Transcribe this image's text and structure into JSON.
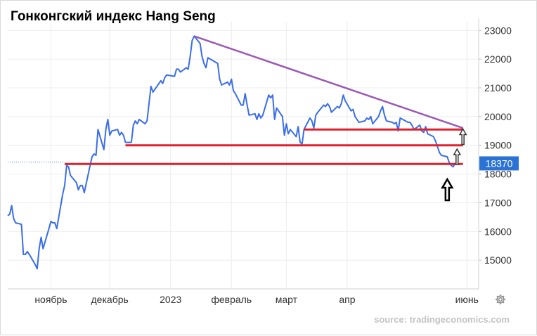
{
  "chart_data": {
    "type": "line",
    "title": "Гонконгский индекс Hang Seng",
    "xlabel": "",
    "ylabel": "",
    "x_tick_labels": [
      "ноябрь",
      "декабрь",
      "2023",
      "февраль",
      "март",
      "апр",
      "июнь"
    ],
    "x_tick_dates": [
      "2022-11-01",
      "2022-12-01",
      "2023-01-01",
      "2023-02-01",
      "2023-03-01",
      "2023-04-01",
      "2023-06-01"
    ],
    "y_ticks": [
      15000,
      16000,
      17000,
      18000,
      19000,
      20000,
      21000,
      22000,
      23000
    ],
    "ylim": [
      14000,
      23300
    ],
    "xlim": [
      "2022-10-10",
      "2023-06-07"
    ],
    "grid": true,
    "legend": "none",
    "current_value_label": "18370",
    "series": [
      {
        "color": "#3a6ee8",
        "points": [
          [
            "2022-10-10",
            16550
          ],
          [
            "2022-10-11",
            16600
          ],
          [
            "2022-10-12",
            16900
          ],
          [
            "2022-10-13",
            16450
          ],
          [
            "2022-10-14",
            16300
          ],
          [
            "2022-10-17",
            16250
          ],
          [
            "2022-10-18",
            15200
          ],
          [
            "2022-10-19",
            15200
          ],
          [
            "2022-10-20",
            15300
          ],
          [
            "2022-10-21",
            15200
          ],
          [
            "2022-10-24",
            14850
          ],
          [
            "2022-10-25",
            14700
          ],
          [
            "2022-10-26",
            15400
          ],
          [
            "2022-10-27",
            15800
          ],
          [
            "2022-10-28",
            15400
          ],
          [
            "2022-10-31",
            16100
          ],
          [
            "2022-11-01",
            16350
          ],
          [
            "2022-11-02",
            16300
          ],
          [
            "2022-11-03",
            16300
          ],
          [
            "2022-11-04",
            16100
          ],
          [
            "2022-11-07",
            17300
          ],
          [
            "2022-11-08",
            17600
          ],
          [
            "2022-11-09",
            18300
          ],
          [
            "2022-11-10",
            18250
          ],
          [
            "2022-11-11",
            17950
          ],
          [
            "2022-11-14",
            17700
          ],
          [
            "2022-11-15",
            17450
          ],
          [
            "2022-11-16",
            17600
          ],
          [
            "2022-11-17",
            17600
          ],
          [
            "2022-11-18",
            17350
          ],
          [
            "2022-11-21",
            18300
          ],
          [
            "2022-11-22",
            18600
          ],
          [
            "2022-11-23",
            18700
          ],
          [
            "2022-11-24",
            18650
          ],
          [
            "2022-11-25",
            19550
          ],
          [
            "2022-11-28",
            18850
          ],
          [
            "2022-11-29",
            19550
          ],
          [
            "2022-11-30",
            19900
          ],
          [
            "2022-12-01",
            19350
          ],
          [
            "2022-12-02",
            19500
          ],
          [
            "2022-12-05",
            19550
          ],
          [
            "2022-12-06",
            19350
          ],
          [
            "2022-12-07",
            19450
          ],
          [
            "2022-12-08",
            19350
          ],
          [
            "2022-12-09",
            19100
          ],
          [
            "2022-12-12",
            19100
          ],
          [
            "2022-12-13",
            19700
          ],
          [
            "2022-12-14",
            19850
          ],
          [
            "2022-12-15",
            19750
          ],
          [
            "2022-12-16",
            19900
          ],
          [
            "2022-12-19",
            19750
          ],
          [
            "2022-12-20",
            19850
          ],
          [
            "2022-12-21",
            20450
          ],
          [
            "2022-12-22",
            21050
          ],
          [
            "2022-12-23",
            20850
          ],
          [
            "2022-12-27",
            21250
          ],
          [
            "2022-12-28",
            21150
          ],
          [
            "2022-12-29",
            21350
          ],
          [
            "2022-12-30",
            21450
          ],
          [
            "2023-01-03",
            21400
          ],
          [
            "2023-01-04",
            21650
          ],
          [
            "2023-01-05",
            21650
          ],
          [
            "2023-01-06",
            21550
          ],
          [
            "2023-01-09",
            21700
          ],
          [
            "2023-01-10",
            21650
          ],
          [
            "2023-01-11",
            22100
          ],
          [
            "2023-01-12",
            22650
          ],
          [
            "2023-01-13",
            22800
          ],
          [
            "2023-01-16",
            22550
          ],
          [
            "2023-01-17",
            22100
          ],
          [
            "2023-01-18",
            21850
          ],
          [
            "2023-01-19",
            21700
          ],
          [
            "2023-01-20",
            22050
          ],
          [
            "2023-01-25",
            21850
          ],
          [
            "2023-01-26",
            21300
          ],
          [
            "2023-01-27",
            21100
          ],
          [
            "2023-01-30",
            21200
          ],
          [
            "2023-01-31",
            21100
          ],
          [
            "2023-02-01",
            21300
          ],
          [
            "2023-02-02",
            20900
          ],
          [
            "2023-02-03",
            20800
          ],
          [
            "2023-02-06",
            20400
          ],
          [
            "2023-02-07",
            20400
          ],
          [
            "2023-02-08",
            20800
          ],
          [
            "2023-02-09",
            20400
          ],
          [
            "2023-02-10",
            20050
          ],
          [
            "2023-02-13",
            20100
          ],
          [
            "2023-02-14",
            19900
          ],
          [
            "2023-02-15",
            20100
          ],
          [
            "2023-02-16",
            19950
          ],
          [
            "2023-02-17",
            20050
          ],
          [
            "2023-02-20",
            20750
          ],
          [
            "2023-02-21",
            20650
          ],
          [
            "2023-02-22",
            20750
          ],
          [
            "2023-02-23",
            19900
          ],
          [
            "2023-02-24",
            20300
          ],
          [
            "2023-02-27",
            20000
          ],
          [
            "2023-02-28",
            19350
          ],
          [
            "2023-03-01",
            19750
          ],
          [
            "2023-03-02",
            19400
          ],
          [
            "2023-03-03",
            19550
          ],
          [
            "2023-03-06",
            19300
          ],
          [
            "2023-03-07",
            19650
          ],
          [
            "2023-03-08",
            19100
          ],
          [
            "2023-03-09",
            19050
          ],
          [
            "2023-03-10",
            19550
          ],
          [
            "2023-03-13",
            19950
          ],
          [
            "2023-03-14",
            19850
          ],
          [
            "2023-03-15",
            19600
          ],
          [
            "2023-03-16",
            20050
          ],
          [
            "2023-03-17",
            20150
          ],
          [
            "2023-03-20",
            20400
          ],
          [
            "2023-03-21",
            20350
          ],
          [
            "2023-03-22",
            20450
          ],
          [
            "2023-03-23",
            20350
          ],
          [
            "2023-03-24",
            20150
          ],
          [
            "2023-03-27",
            20350
          ],
          [
            "2023-03-28",
            20300
          ],
          [
            "2023-03-29",
            20450
          ],
          [
            "2023-03-30",
            20750
          ],
          [
            "2023-03-31",
            20550
          ],
          [
            "2023-04-03",
            20200
          ],
          [
            "2023-04-04",
            20250
          ],
          [
            "2023-04-05",
            20000
          ],
          [
            "2023-04-06",
            19900
          ],
          [
            "2023-04-07",
            19800
          ],
          [
            "2023-04-10",
            19850
          ],
          [
            "2023-04-11",
            19950
          ],
          [
            "2023-04-12",
            19900
          ],
          [
            "2023-04-13",
            20000
          ],
          [
            "2023-04-14",
            19750
          ],
          [
            "2023-04-17",
            20000
          ],
          [
            "2023-04-18",
            20200
          ],
          [
            "2023-04-19",
            20350
          ],
          [
            "2023-04-20",
            20050
          ],
          [
            "2023-04-21",
            19850
          ],
          [
            "2023-04-24",
            19800
          ],
          [
            "2023-04-25",
            19750
          ],
          [
            "2023-04-26",
            19800
          ],
          [
            "2023-04-27",
            19500
          ],
          [
            "2023-04-28",
            19950
          ],
          [
            "2023-05-02",
            19800
          ],
          [
            "2023-05-03",
            19800
          ],
          [
            "2023-05-04",
            19700
          ],
          [
            "2023-05-05",
            19550
          ],
          [
            "2023-05-08",
            19700
          ],
          [
            "2023-05-09",
            19500
          ],
          [
            "2023-05-10",
            19450
          ],
          [
            "2023-05-11",
            19650
          ],
          [
            "2023-05-12",
            19400
          ],
          [
            "2023-05-15",
            19300
          ],
          [
            "2023-05-16",
            19150
          ],
          [
            "2023-05-17",
            18950
          ],
          [
            "2023-05-18",
            18750
          ],
          [
            "2023-05-19",
            18650
          ],
          [
            "2023-05-22",
            18600
          ],
          [
            "2023-05-23",
            18400
          ],
          [
            "2023-05-24",
            18300
          ],
          [
            "2023-05-25",
            18250
          ],
          [
            "2023-05-26",
            18370
          ]
        ]
      }
    ],
    "annotations": [
      {
        "kind": "trendline",
        "color": "#9b59b6",
        "from": [
          "2023-01-13",
          22800
        ],
        "to": [
          "2023-05-30",
          19600
        ]
      },
      {
        "kind": "hline",
        "color": "#e0202f",
        "from": [
          "2023-03-10",
          19550
        ],
        "to": [
          "2023-05-30",
          19550
        ]
      },
      {
        "kind": "hline",
        "color": "#e0202f",
        "from": [
          "2022-12-09",
          19000
        ],
        "to": [
          "2023-05-30",
          19000
        ]
      },
      {
        "kind": "hline",
        "color": "#e0202f",
        "from": [
          "2022-11-08",
          18350
        ],
        "to": [
          "2023-05-30",
          18350
        ]
      },
      {
        "kind": "arrow-up-hollow",
        "color": "#000000",
        "at": [
          "2023-05-22",
          17450
        ],
        "size": "large"
      },
      {
        "kind": "arrow-up-hollow",
        "color": "#333333",
        "at": [
          "2023-05-27",
          18600
        ],
        "size": "small"
      },
      {
        "kind": "arrow-up-hollow",
        "color": "#333333",
        "at": [
          "2023-05-30",
          19300
        ],
        "size": "small"
      }
    ]
  },
  "source_text": "source: tradingeconomics.com",
  "settings_icon": "gear-icon"
}
